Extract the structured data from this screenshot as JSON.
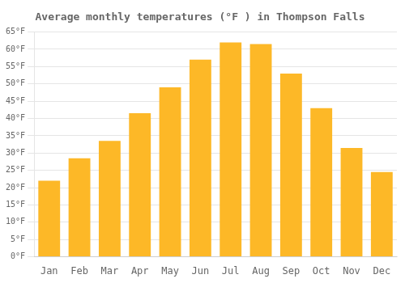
{
  "chart_data": {
    "type": "bar",
    "title": "Average monthly temperatures (°F ) in Thompson Falls",
    "categories": [
      "Jan",
      "Feb",
      "Mar",
      "Apr",
      "May",
      "Jun",
      "Jul",
      "Aug",
      "Sep",
      "Oct",
      "Nov",
      "Dec"
    ],
    "values": [
      22,
      28.5,
      33.5,
      41.5,
      49,
      57,
      62,
      61.5,
      53,
      43,
      31.5,
      24.5
    ],
    "color": "#FDB827",
    "ylim": [
      0,
      65
    ],
    "yticks": [
      {
        "value": 0,
        "label": "0°F"
      },
      {
        "value": 5,
        "label": "5°F"
      },
      {
        "value": 10,
        "label": "10°F"
      },
      {
        "value": 15,
        "label": "15°F"
      },
      {
        "value": 20,
        "label": "20°F"
      },
      {
        "value": 25,
        "label": "25°F"
      },
      {
        "value": 30,
        "label": "30°F"
      },
      {
        "value": 35,
        "label": "35°F"
      },
      {
        "value": 40,
        "label": "40°F"
      },
      {
        "value": 45,
        "label": "45°F"
      },
      {
        "value": 50,
        "label": "50°F"
      },
      {
        "value": 55,
        "label": "55°F"
      },
      {
        "value": 60,
        "label": "60°F"
      },
      {
        "value": 65,
        "label": "65°F"
      }
    ],
    "grid": true
  }
}
